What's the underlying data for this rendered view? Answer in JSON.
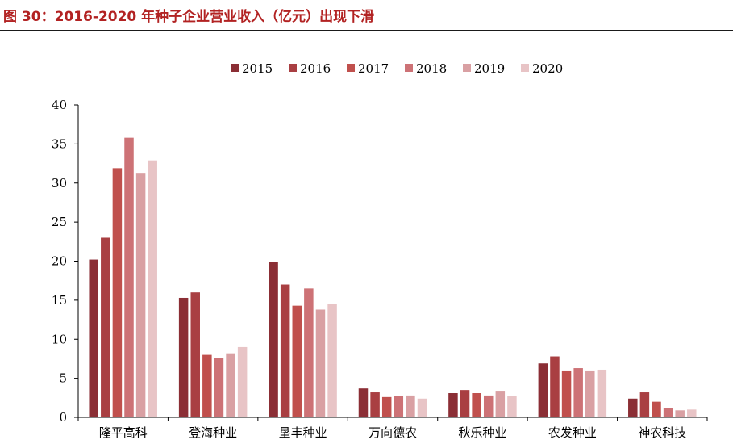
{
  "figure": {
    "title": "图 30：2016-2020 年种子企业营业收入（亿元）出现下滑"
  },
  "colors": {
    "title": "#b22222",
    "series": [
      "#8b2e35",
      "#a93f42",
      "#c0504d",
      "#cd7276",
      "#d9a0a3",
      "#e8c4c6"
    ]
  },
  "chart_data": {
    "type": "bar",
    "title": "",
    "xlabel": "",
    "ylabel": "",
    "ylim": [
      0,
      40
    ],
    "yticks": [
      0,
      5,
      10,
      15,
      20,
      25,
      30,
      35,
      40
    ],
    "grid": false,
    "legend_position": "top-center",
    "categories": [
      "隆平高科",
      "登海种业",
      "垦丰种业",
      "万向德农",
      "秋乐种业",
      "农发种业",
      "神农科技"
    ],
    "series": [
      {
        "name": "2015",
        "values": [
          20.2,
          15.3,
          19.9,
          3.7,
          3.1,
          6.9,
          2.4
        ]
      },
      {
        "name": "2016",
        "values": [
          23.0,
          16.0,
          17.0,
          3.2,
          3.5,
          7.8,
          3.2
        ]
      },
      {
        "name": "2017",
        "values": [
          31.9,
          8.0,
          14.3,
          2.6,
          3.1,
          6.0,
          2.0
        ]
      },
      {
        "name": "2018",
        "values": [
          35.8,
          7.6,
          16.5,
          2.7,
          2.8,
          6.3,
          1.2
        ]
      },
      {
        "name": "2019",
        "values": [
          31.3,
          8.2,
          13.8,
          2.8,
          3.3,
          6.0,
          0.9
        ]
      },
      {
        "name": "2020",
        "values": [
          32.9,
          9.0,
          14.5,
          2.4,
          2.7,
          6.1,
          1.0
        ]
      }
    ]
  }
}
